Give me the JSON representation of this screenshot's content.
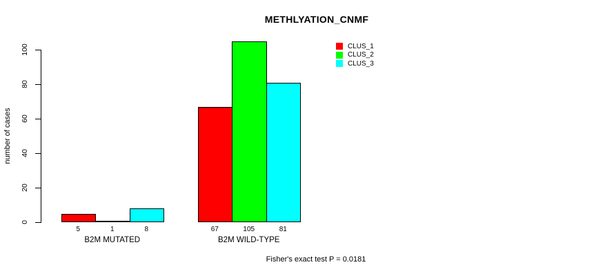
{
  "chart_data": {
    "type": "bar",
    "title": "METHLYATION_CNMF",
    "ylabel": "number of cases",
    "xlabel": "",
    "categories": [
      "B2M MUTATED",
      "B2M WILD-TYPE"
    ],
    "series": [
      {
        "name": "CLUS_1",
        "color": "#ff0000",
        "values": [
          5,
          67
        ]
      },
      {
        "name": "CLUS_2",
        "color": "#00ff00",
        "values": [
          1,
          105
        ]
      },
      {
        "name": "CLUS_3",
        "color": "#00ffff",
        "values": [
          8,
          81
        ]
      }
    ],
    "ylim": [
      0,
      100
    ],
    "yticks": [
      0,
      20,
      40,
      60,
      80,
      100
    ],
    "bar_value_labels": [
      [
        "5",
        "1",
        "8"
      ],
      [
        "67",
        "105",
        "81"
      ]
    ],
    "legend_position": "top-right",
    "grid": false,
    "annotation": "Fisher's exact test P = 0.0181",
    "bar_border_color": "#000000",
    "axis_color": "#000000",
    "text_color": "#000000",
    "background_color": "#ffffff"
  }
}
